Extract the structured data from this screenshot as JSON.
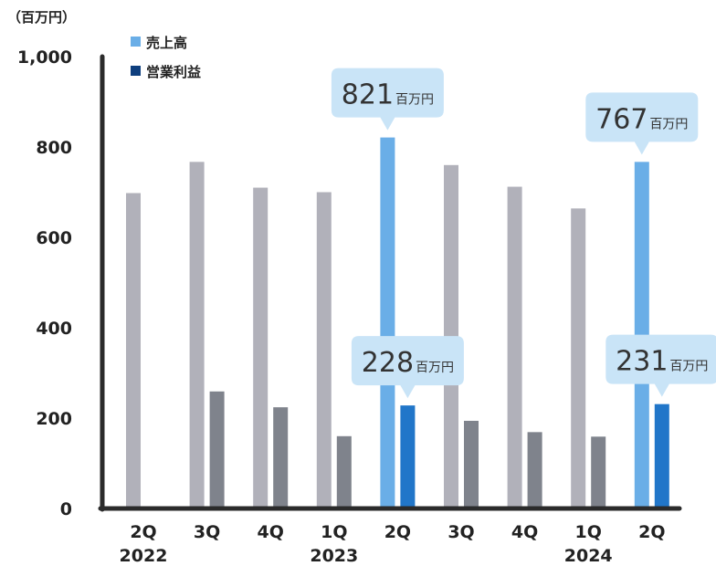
{
  "chart_data": {
    "type": "bar",
    "unit_label": "（百万円）",
    "categories": [
      "2Q",
      "3Q",
      "4Q",
      "1Q",
      "2Q",
      "3Q",
      "4Q",
      "1Q",
      "2Q"
    ],
    "years": [
      {
        "label": "2022",
        "under_index": 0
      },
      {
        "label": "2023",
        "under_index": 3
      },
      {
        "label": "2024",
        "under_index": 7
      }
    ],
    "ylim": [
      0,
      1000
    ],
    "yticks": [
      "0",
      "200",
      "400",
      "600",
      "800",
      "1,000"
    ],
    "series": [
      {
        "name": "売上高",
        "values": [
          698,
          767,
          710,
          700,
          821,
          760,
          712,
          664,
          767
        ]
      },
      {
        "name": "営業利益",
        "values": [
          null,
          259,
          224,
          160,
          228,
          194,
          169,
          159,
          231
        ]
      }
    ],
    "highlight_indices": [
      4,
      8
    ],
    "colors": {
      "sales": "#b1b1ba",
      "profit": "#7f838c",
      "sales_highlight": "#6aaee7",
      "profit_highlight": "#2176c9",
      "callout": "#c9e4f7",
      "axis": "#2b2b2b",
      "legend_sales": "#6aaee7",
      "legend_profit": "#0e3f7e"
    },
    "callouts": [
      {
        "index": 4,
        "series": 0,
        "value": "821",
        "unit": "百万円"
      },
      {
        "index": 8,
        "series": 0,
        "value": "767",
        "unit": "百万円"
      },
      {
        "index": 4,
        "series": 1,
        "value": "228",
        "unit": "百万円"
      },
      {
        "index": 8,
        "series": 1,
        "value": "231",
        "unit": "百万円"
      }
    ]
  }
}
